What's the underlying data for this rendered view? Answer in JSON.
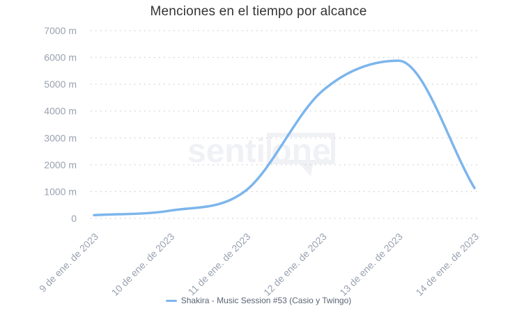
{
  "title": "Menciones en el tiempo por alcance",
  "watermark": {
    "prefix": "senti",
    "boxed": "one"
  },
  "legend": {
    "label": "Shakira - Music Session #53 (Casio y Twingo)",
    "swatch_color": "#7cb5ec"
  },
  "colors": {
    "line": "#7cb5ec",
    "axis_label": "#99a1b0",
    "grid_dot": "#cccdd3",
    "title": "#333333",
    "legend_text": "#5a6472",
    "watermark": "#f0f1f5"
  },
  "chart_data": {
    "type": "line",
    "title": "Menciones en el tiempo por alcance",
    "categories": [
      "9 de ene. de 2023",
      "10 de ene. de 2023",
      "11 de ene. de 2023",
      "12 de ene. de 2023",
      "13 de ene. de 2023",
      "14 de ene. de 2023"
    ],
    "series": [
      {
        "name": "Shakira - Music Session #53 (Casio y Twingo)",
        "values": [
          120,
          290,
          1050,
          4750,
          5880,
          1130
        ],
        "color": "#7cb5ec"
      }
    ],
    "ylim": [
      0,
      7000
    ],
    "yticks": [
      {
        "value": 0,
        "label": "0"
      },
      {
        "value": 1000,
        "label": "1000 m"
      },
      {
        "value": 2000,
        "label": "2000 m"
      },
      {
        "value": 3000,
        "label": "3000 m"
      },
      {
        "value": 4000,
        "label": "4000 m"
      },
      {
        "value": 5000,
        "label": "5000 m"
      },
      {
        "value": 6000,
        "label": "6000 m"
      },
      {
        "value": 7000,
        "label": "7000 m"
      }
    ],
    "xlabel": "",
    "ylabel": "",
    "grid": "dotted-horizontal",
    "legend_position": "bottom-center",
    "curve": "spline"
  }
}
